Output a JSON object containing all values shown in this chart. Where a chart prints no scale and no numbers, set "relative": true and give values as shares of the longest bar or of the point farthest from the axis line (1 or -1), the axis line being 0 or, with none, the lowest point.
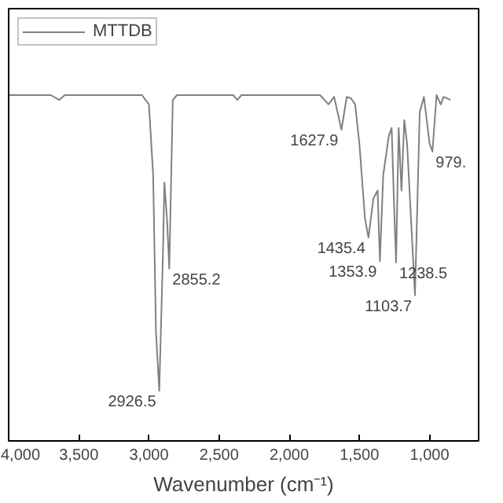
{
  "chart_data": {
    "type": "line",
    "relative": true,
    "xlabel": "Wavenumber (cm⁻¹)",
    "x": [
      4000,
      3700,
      3640,
      3600,
      3050,
      3000,
      2970,
      2950,
      2926.5,
      2900,
      2890,
      2870,
      2855.2,
      2830,
      2800,
      2400,
      2370,
      2340,
      1780,
      1720,
      1680,
      1627.9,
      1590,
      1560,
      1530,
      1500,
      1460,
      1435.4,
      1400,
      1370,
      1353.9,
      1330,
      1290,
      1270,
      1255,
      1238.5,
      1220,
      1200,
      1180,
      1160,
      1103.7,
      1070,
      1040,
      1000,
      979,
      950,
      920,
      900,
      850
    ],
    "series": [
      {
        "name": "MTTDB",
        "color": "#808080",
        "values": [
          1.0,
          1.0,
          0.986,
          1.0,
          1.0,
          0.973,
          0.769,
          0.317,
          0.145,
          0.543,
          0.747,
          0.633,
          0.498,
          0.986,
          1.0,
          1.0,
          0.986,
          1.0,
          1.0,
          0.973,
          0.995,
          0.9,
          0.995,
          0.991,
          0.973,
          0.86,
          0.643,
          0.588,
          0.701,
          0.724,
          0.52,
          0.769,
          0.882,
          0.905,
          0.71,
          0.516,
          0.905,
          0.724,
          0.928,
          0.86,
          0.421,
          0.95,
          0.995,
          0.86,
          0.837,
          1.0,
          0.973,
          0.995,
          0.986
        ]
      }
    ],
    "xlim": [
      4000,
      650
    ],
    "xticks": [
      {
        "value": 4000,
        "label": "4,000"
      },
      {
        "value": 3500,
        "label": "3,500"
      },
      {
        "value": 3000,
        "label": "3,000"
      },
      {
        "value": 2500,
        "label": "2,500"
      },
      {
        "value": 2000,
        "label": "2,000"
      },
      {
        "value": 1500,
        "label": "1,500"
      },
      {
        "value": 1000,
        "label": "1,000"
      }
    ],
    "tick_labels": "x",
    "legend": "top left",
    "line_style": "solid",
    "marker": "none",
    "annotations": [
      {
        "text": "2926.5",
        "x": 2926.5,
        "y": 0.145
      },
      {
        "text": "2855.2",
        "x": 2855.2,
        "y": 0.498
      },
      {
        "text": "1627.9",
        "x": 1627.9,
        "y": 0.9
      },
      {
        "text": "1435.4",
        "x": 1435.4,
        "y": 0.588
      },
      {
        "text": "1353.9",
        "x": 1353.9,
        "y": 0.52
      },
      {
        "text": "1238.5",
        "x": 1238.5,
        "y": 0.516
      },
      {
        "text": "1103.7",
        "x": 1103.7,
        "y": 0.421
      },
      {
        "text": "979.",
        "x": 979,
        "y": 0.837
      }
    ]
  }
}
